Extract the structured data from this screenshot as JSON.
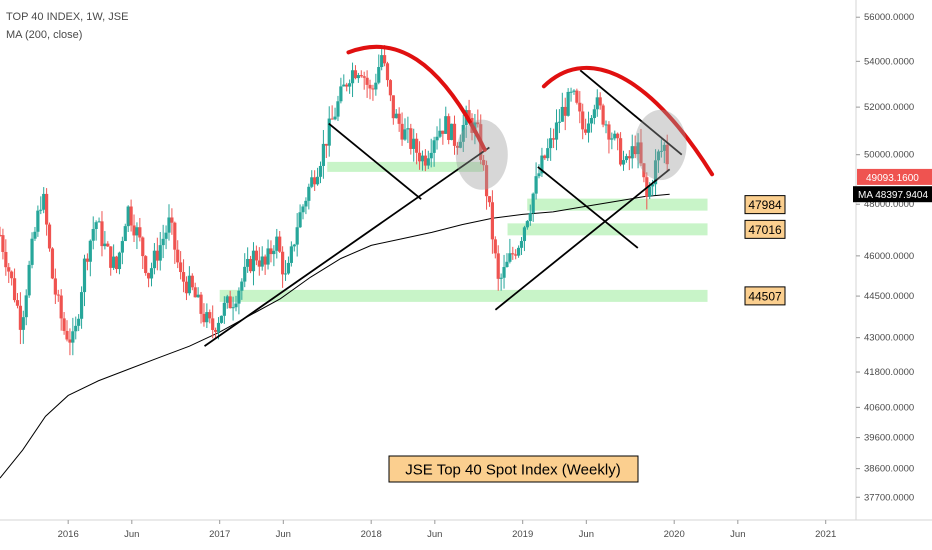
{
  "header": {
    "symbol_line": "TOP 40 INDEX, 1W, JSE",
    "indicator_line": "MA (200, close)"
  },
  "chart_data": {
    "type": "candlestick",
    "title": "JSE Top 40 Spot Index (Weekly)",
    "ylim": [
      37000,
      56800
    ],
    "y_ticks": [
      56000,
      54000,
      52000,
      50000,
      48000,
      46000,
      44500,
      43000,
      41800,
      40600,
      39600,
      38600,
      37700
    ],
    "y_tick_labels": [
      "56000.0000",
      "54000.0000",
      "52000.0000",
      "50000.0000",
      "48000.0000",
      "46000.0000",
      "44500.0000",
      "43000.0000",
      "41800.0000",
      "40600.0000",
      "39600.0000",
      "38600.0000",
      "37700.0000"
    ],
    "x_ticks": [
      {
        "label": "2016",
        "t": 2016.0
      },
      {
        "label": "Jun",
        "t": 2016.42
      },
      {
        "label": "2017",
        "t": 2017.0
      },
      {
        "label": "Jun",
        "t": 2017.42
      },
      {
        "label": "2018",
        "t": 2018.0
      },
      {
        "label": "Jun",
        "t": 2018.42
      },
      {
        "label": "2019",
        "t": 2019.0
      },
      {
        "label": "Jun",
        "t": 2019.42
      },
      {
        "label": "2020",
        "t": 2020.0
      },
      {
        "label": "Jun",
        "t": 2020.42
      },
      {
        "label": "2021",
        "t": 2021.0
      }
    ],
    "x_range": [
      2015.55,
      2021.2
    ],
    "price_anchors": [
      [
        2015.55,
        46800
      ],
      [
        2015.62,
        45200
      ],
      [
        2015.69,
        43500
      ],
      [
        2015.76,
        46200
      ],
      [
        2015.83,
        48500
      ],
      [
        2015.9,
        45000
      ],
      [
        2015.97,
        43300
      ],
      [
        2016.04,
        42800
      ],
      [
        2016.11,
        45800
      ],
      [
        2016.18,
        47400
      ],
      [
        2016.25,
        46200
      ],
      [
        2016.32,
        45500
      ],
      [
        2016.39,
        47900
      ],
      [
        2016.46,
        46800
      ],
      [
        2016.53,
        45300
      ],
      [
        2016.6,
        46300
      ],
      [
        2016.67,
        47300
      ],
      [
        2016.74,
        45200
      ],
      [
        2016.81,
        44800
      ],
      [
        2016.88,
        43900
      ],
      [
        2016.95,
        43300
      ],
      [
        2017.02,
        44000
      ],
      [
        2017.09,
        44400
      ],
      [
        2017.16,
        45200
      ],
      [
        2017.23,
        46100
      ],
      [
        2017.3,
        45600
      ],
      [
        2017.37,
        46700
      ],
      [
        2017.44,
        45000
      ],
      [
        2017.51,
        47200
      ],
      [
        2017.58,
        48500
      ],
      [
        2017.65,
        49600
      ],
      [
        2017.72,
        51000
      ],
      [
        2017.79,
        52300
      ],
      [
        2017.86,
        53500
      ],
      [
        2017.93,
        53800
      ],
      [
        2018.0,
        52500
      ],
      [
        2018.07,
        54300
      ],
      [
        2018.14,
        51800
      ],
      [
        2018.21,
        51000
      ],
      [
        2018.28,
        50300
      ],
      [
        2018.35,
        49800
      ],
      [
        2018.42,
        50900
      ],
      [
        2018.49,
        51300
      ],
      [
        2018.56,
        50500
      ],
      [
        2018.63,
        51500
      ],
      [
        2018.7,
        51000
      ],
      [
        2018.77,
        48200
      ],
      [
        2018.84,
        44900
      ],
      [
        2018.91,
        45800
      ],
      [
        2018.98,
        46600
      ],
      [
        2019.05,
        48000
      ],
      [
        2019.12,
        49500
      ],
      [
        2019.19,
        50500
      ],
      [
        2019.26,
        51800
      ],
      [
        2019.33,
        52500
      ],
      [
        2019.4,
        51000
      ],
      [
        2019.47,
        52300
      ],
      [
        2019.54,
        51500
      ],
      [
        2019.61,
        50500
      ],
      [
        2019.68,
        49500
      ],
      [
        2019.75,
        50500
      ],
      [
        2019.82,
        48200
      ],
      [
        2019.89,
        49900
      ],
      [
        2019.94,
        50400
      ],
      [
        2019.97,
        49093
      ]
    ],
    "ma_label": "MA",
    "ma_last_value": "48397.9404",
    "ma_line": [
      [
        2015.55,
        38300
      ],
      [
        2015.7,
        39200
      ],
      [
        2015.85,
        40300
      ],
      [
        2016.0,
        41000
      ],
      [
        2016.2,
        41500
      ],
      [
        2016.4,
        41900
      ],
      [
        2016.6,
        42300
      ],
      [
        2016.8,
        42700
      ],
      [
        2017.0,
        43200
      ],
      [
        2017.2,
        43800
      ],
      [
        2017.4,
        44400
      ],
      [
        2017.6,
        45200
      ],
      [
        2017.8,
        45900
      ],
      [
        2018.0,
        46400
      ],
      [
        2018.2,
        46650
      ],
      [
        2018.4,
        46900
      ],
      [
        2018.6,
        47200
      ],
      [
        2018.8,
        47450
      ],
      [
        2019.0,
        47600
      ],
      [
        2019.2,
        47700
      ],
      [
        2019.4,
        47900
      ],
      [
        2019.6,
        48100
      ],
      [
        2019.8,
        48300
      ],
      [
        2019.97,
        48398
      ]
    ],
    "last_price_label": "49093.1600",
    "last_price": 49093.16,
    "support_zones": [
      {
        "label": "47984",
        "value": 47984,
        "from": 2019.03,
        "to": 2020.22
      },
      {
        "label": "47016",
        "value": 47016,
        "from": 2018.9,
        "to": 2020.22
      },
      {
        "label": "44507",
        "value": 44507,
        "from": 2017.0,
        "to": 2020.22
      }
    ],
    "zones_extra": [
      {
        "value": 49500,
        "from": 2017.71,
        "to": 2018.74
      }
    ],
    "trendlines": [
      {
        "points": [
          [
            2016.9,
            42700
          ],
          [
            2018.78,
            50300
          ]
        ]
      },
      {
        "points": [
          [
            2017.72,
            51300
          ],
          [
            2018.33,
            48200
          ]
        ]
      },
      {
        "points": [
          [
            2018.82,
            44000
          ],
          [
            2019.97,
            49400
          ]
        ]
      },
      {
        "points": [
          [
            2019.1,
            49500
          ],
          [
            2019.76,
            46300
          ]
        ]
      },
      {
        "points": [
          [
            2019.38,
            53600
          ],
          [
            2020.05,
            50000
          ]
        ]
      }
    ],
    "arcs": [
      {
        "points": [
          [
            2017.85,
            54400
          ],
          [
            2018.15,
            55200
          ],
          [
            2018.45,
            54200
          ],
          [
            2018.75,
            50200
          ]
        ]
      },
      {
        "points": [
          [
            2019.14,
            52900
          ],
          [
            2019.4,
            54600
          ],
          [
            2019.8,
            53800
          ],
          [
            2020.25,
            49200
          ]
        ]
      }
    ],
    "circles": [
      {
        "cx": 2018.73,
        "cy": 50000,
        "r": 26
      },
      {
        "cx": 2019.91,
        "cy": 50400,
        "r": 26
      }
    ],
    "colors": {
      "up": "#26a69a",
      "down": "#ef5350",
      "ma": "#000000",
      "arc": "#e01010",
      "zone": "#b5f0b5",
      "badge": "#fbcf8f",
      "last_price": "#ef5350",
      "ma_tag": "#000000"
    }
  }
}
